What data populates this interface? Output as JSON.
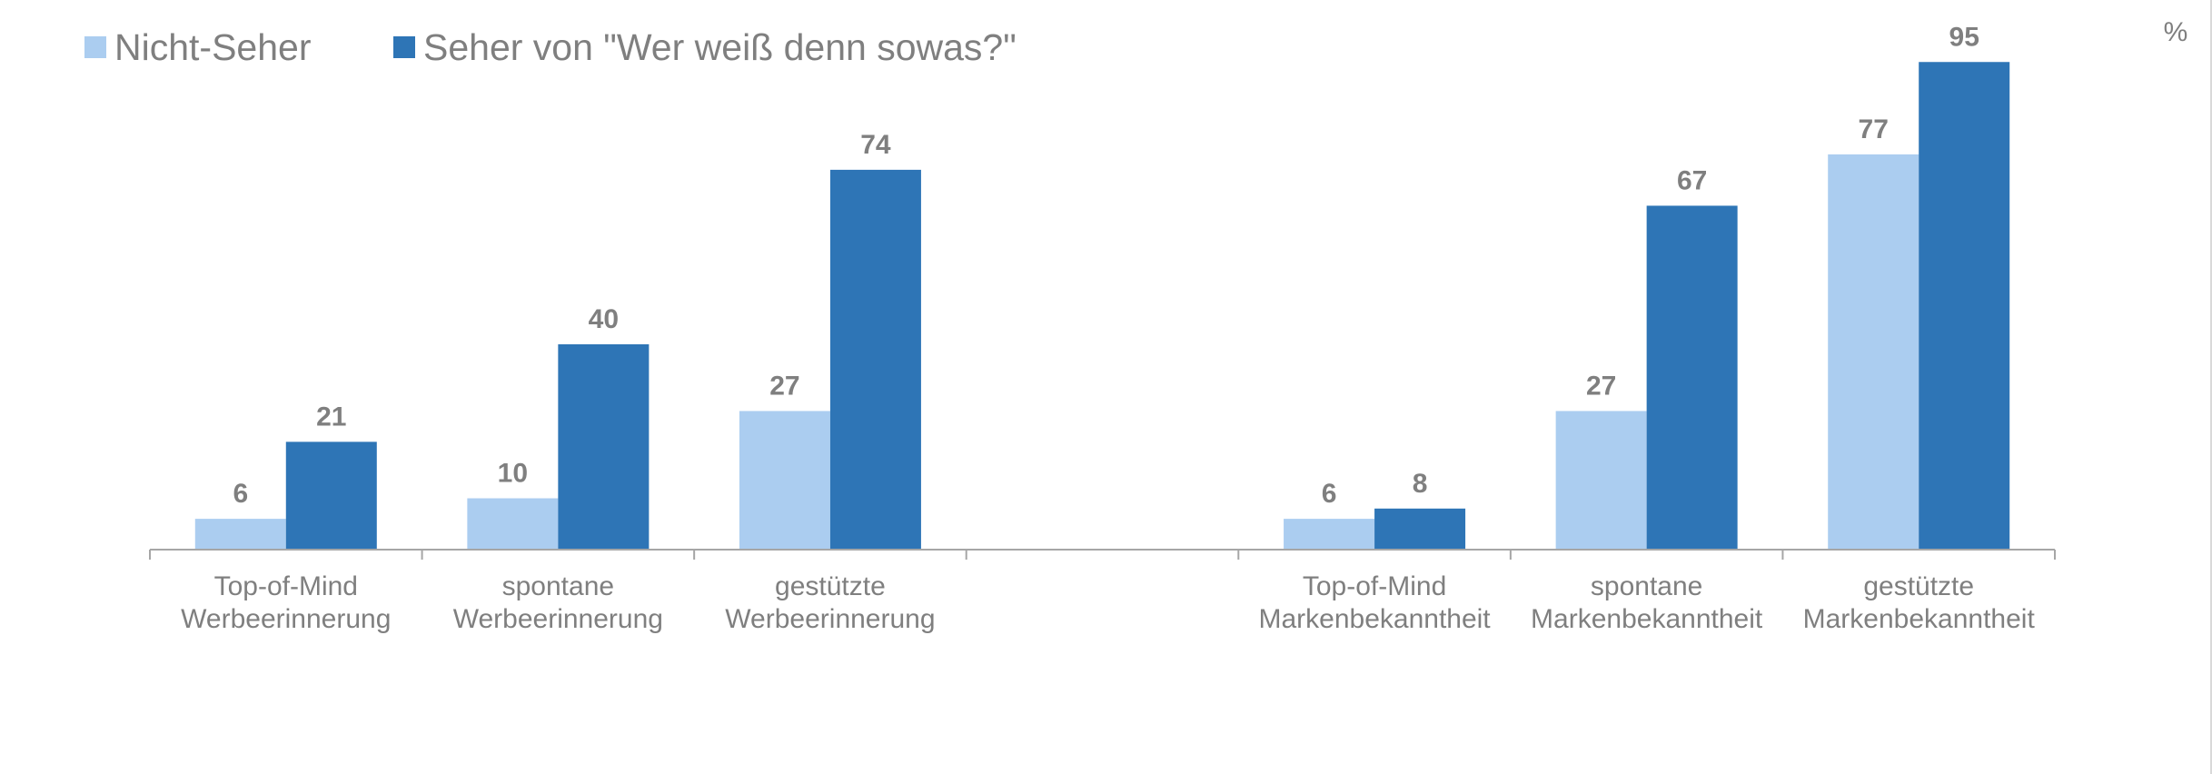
{
  "chart_data": {
    "type": "bar",
    "unit": "%",
    "categories": [
      [
        "Top-of-Mind",
        "Werbeerinnerung"
      ],
      [
        "spontane",
        "Werbeerinnerung"
      ],
      [
        "gestützte",
        "Werbeerinnerung"
      ],
      [
        "",
        ""
      ],
      [
        "Top-of-Mind",
        "Markenbekanntheit"
      ],
      [
        "spontane",
        "Markenbekanntheit"
      ],
      [
        "gestützte",
        "Markenbekanntheit"
      ]
    ],
    "series": [
      {
        "name": "Nicht-Seher",
        "color": "#abcdf0",
        "values": [
          6,
          10,
          27,
          null,
          6,
          27,
          77
        ]
      },
      {
        "name": "Seher von \"Wer weiß denn sowas?\"",
        "color": "#2e75b6",
        "values": [
          21,
          40,
          74,
          null,
          8,
          67,
          95
        ]
      }
    ],
    "ylim": [
      0,
      100
    ],
    "legend_position": "top-left",
    "grid": false
  }
}
